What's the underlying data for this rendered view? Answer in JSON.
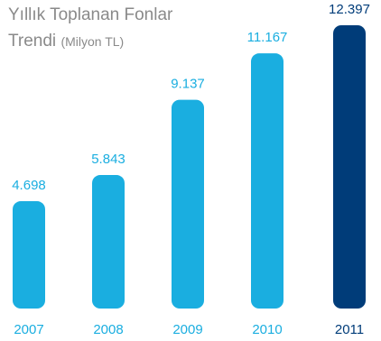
{
  "chart_data": {
    "type": "bar",
    "title": "Yıllık Toplanan Fonlar",
    "title_line2": "Trendi",
    "title_unit": "(Milyon TL)",
    "categories": [
      "2007",
      "2008",
      "2009",
      "2010",
      "2011"
    ],
    "values": [
      4698,
      5843,
      9137,
      11167,
      12397
    ],
    "value_labels": [
      "4.698",
      "5.843",
      "9.137",
      "11.167",
      "12.397"
    ],
    "ylim": [
      0,
      12397
    ],
    "grid": false,
    "legend": "none",
    "colors": {
      "bar": "#1aaee0",
      "highlight_bar": "#003c79",
      "value_text": "#1aaee0",
      "highlight_value_text": "#003c79",
      "category_text": "#1aaee0",
      "highlight_category_text": "#003c79",
      "title_text": "#8a8a8a"
    },
    "highlight_index": 4
  }
}
